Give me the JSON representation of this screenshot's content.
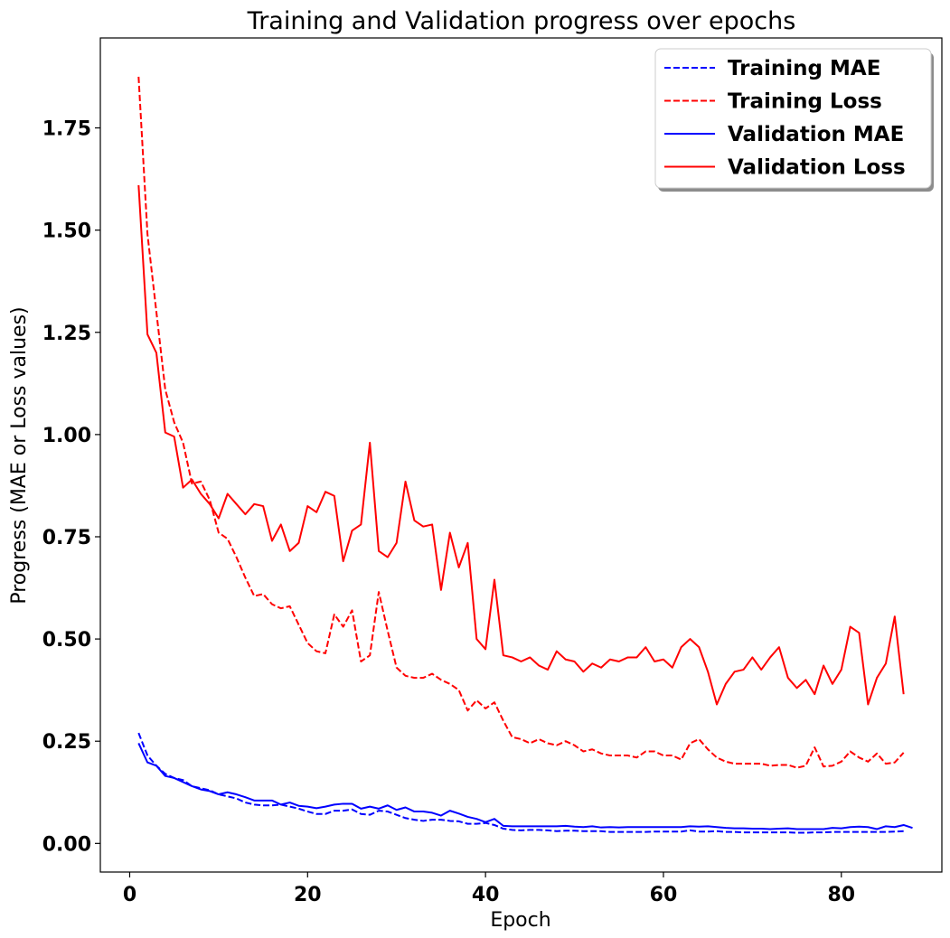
{
  "chart_data": {
    "type": "line",
    "title": "Training and Validation progress over epochs",
    "xlabel": "Epoch",
    "ylabel": "Progress (MAE or Loss values)",
    "xlim": [
      -3.3,
      91.3
    ],
    "ylim": [
      -0.07,
      1.97
    ],
    "xticks": [
      0,
      20,
      40,
      60,
      80
    ],
    "yticks": [
      0.0,
      0.25,
      0.5,
      0.75,
      1.0,
      1.25,
      1.5,
      1.75
    ],
    "ytick_labels": [
      "0.00",
      "0.25",
      "0.50",
      "0.75",
      "1.00",
      "1.25",
      "1.50",
      "1.75"
    ],
    "grid": false,
    "legend_position": "top-right",
    "series": [
      {
        "name": "Training MAE",
        "color": "#0000ff",
        "style": "dashed",
        "values": [
          0.27,
          0.215,
          0.19,
          0.17,
          0.16,
          0.155,
          0.14,
          0.135,
          0.13,
          0.12,
          0.115,
          0.11,
          0.1,
          0.095,
          0.093,
          0.093,
          0.095,
          0.09,
          0.085,
          0.078,
          0.072,
          0.072,
          0.08,
          0.08,
          0.083,
          0.072,
          0.07,
          0.08,
          0.078,
          0.07,
          0.062,
          0.058,
          0.055,
          0.058,
          0.058,
          0.055,
          0.054,
          0.048,
          0.048,
          0.05,
          0.045,
          0.036,
          0.033,
          0.032,
          0.033,
          0.033,
          0.032,
          0.03,
          0.031,
          0.031,
          0.03,
          0.03,
          0.03,
          0.028,
          0.028,
          0.028,
          0.028,
          0.028,
          0.029,
          0.029,
          0.029,
          0.029,
          0.032,
          0.029,
          0.029,
          0.03,
          0.028,
          0.028,
          0.027,
          0.027,
          0.027,
          0.027,
          0.027,
          0.027,
          0.026,
          0.026,
          0.027,
          0.027,
          0.028,
          0.028,
          0.028,
          0.028,
          0.028,
          0.028,
          0.028,
          0.029,
          0.03
        ]
      },
      {
        "name": "Training Loss",
        "color": "#ff0000",
        "style": "dashed",
        "values": [
          1.875,
          1.49,
          1.3,
          1.11,
          1.03,
          0.98,
          0.88,
          0.885,
          0.84,
          0.76,
          0.745,
          0.7,
          0.65,
          0.605,
          0.61,
          0.585,
          0.575,
          0.58,
          0.535,
          0.49,
          0.47,
          0.465,
          0.56,
          0.53,
          0.57,
          0.445,
          0.46,
          0.615,
          0.52,
          0.43,
          0.41,
          0.405,
          0.405,
          0.415,
          0.4,
          0.39,
          0.375,
          0.325,
          0.35,
          0.33,
          0.345,
          0.3,
          0.26,
          0.255,
          0.245,
          0.255,
          0.245,
          0.24,
          0.25,
          0.24,
          0.225,
          0.23,
          0.22,
          0.215,
          0.215,
          0.215,
          0.21,
          0.225,
          0.225,
          0.215,
          0.215,
          0.205,
          0.245,
          0.255,
          0.23,
          0.21,
          0.2,
          0.195,
          0.195,
          0.195,
          0.195,
          0.19,
          0.192,
          0.192,
          0.185,
          0.19,
          0.235,
          0.188,
          0.19,
          0.2,
          0.225,
          0.21,
          0.2,
          0.22,
          0.195,
          0.198,
          0.222
        ]
      },
      {
        "name": "Validation MAE",
        "color": "#0000ff",
        "style": "solid",
        "values": [
          0.245,
          0.198,
          0.19,
          0.165,
          0.16,
          0.15,
          0.14,
          0.132,
          0.128,
          0.12,
          0.125,
          0.12,
          0.113,
          0.105,
          0.105,
          0.105,
          0.095,
          0.1,
          0.092,
          0.09,
          0.086,
          0.09,
          0.095,
          0.097,
          0.097,
          0.085,
          0.09,
          0.085,
          0.093,
          0.082,
          0.088,
          0.078,
          0.078,
          0.075,
          0.068,
          0.08,
          0.073,
          0.065,
          0.06,
          0.052,
          0.06,
          0.043,
          0.042,
          0.042,
          0.042,
          0.042,
          0.042,
          0.042,
          0.043,
          0.041,
          0.04,
          0.042,
          0.039,
          0.04,
          0.039,
          0.04,
          0.04,
          0.04,
          0.04,
          0.04,
          0.04,
          0.04,
          0.042,
          0.041,
          0.042,
          0.04,
          0.038,
          0.037,
          0.037,
          0.036,
          0.036,
          0.035,
          0.036,
          0.037,
          0.035,
          0.035,
          0.035,
          0.035,
          0.038,
          0.037,
          0.04,
          0.041,
          0.04,
          0.035,
          0.042,
          0.04,
          0.045,
          0.038
        ]
      },
      {
        "name": "Validation Loss",
        "color": "#ff0000",
        "style": "solid",
        "values": [
          1.61,
          1.245,
          1.2,
          1.005,
          0.995,
          0.87,
          0.89,
          0.855,
          0.83,
          0.795,
          0.855,
          0.83,
          0.805,
          0.83,
          0.825,
          0.74,
          0.78,
          0.715,
          0.735,
          0.825,
          0.81,
          0.86,
          0.85,
          0.69,
          0.765,
          0.78,
          0.98,
          0.715,
          0.7,
          0.735,
          0.885,
          0.79,
          0.775,
          0.78,
          0.62,
          0.76,
          0.675,
          0.735,
          0.5,
          0.475,
          0.645,
          0.46,
          0.455,
          0.445,
          0.455,
          0.435,
          0.425,
          0.47,
          0.45,
          0.445,
          0.42,
          0.44,
          0.43,
          0.45,
          0.445,
          0.455,
          0.455,
          0.48,
          0.445,
          0.45,
          0.43,
          0.48,
          0.5,
          0.48,
          0.42,
          0.34,
          0.39,
          0.42,
          0.425,
          0.455,
          0.425,
          0.455,
          0.48,
          0.405,
          0.38,
          0.4,
          0.365,
          0.435,
          0.39,
          0.425,
          0.53,
          0.515,
          0.34,
          0.405,
          0.44,
          0.555,
          0.365
        ]
      }
    ]
  }
}
